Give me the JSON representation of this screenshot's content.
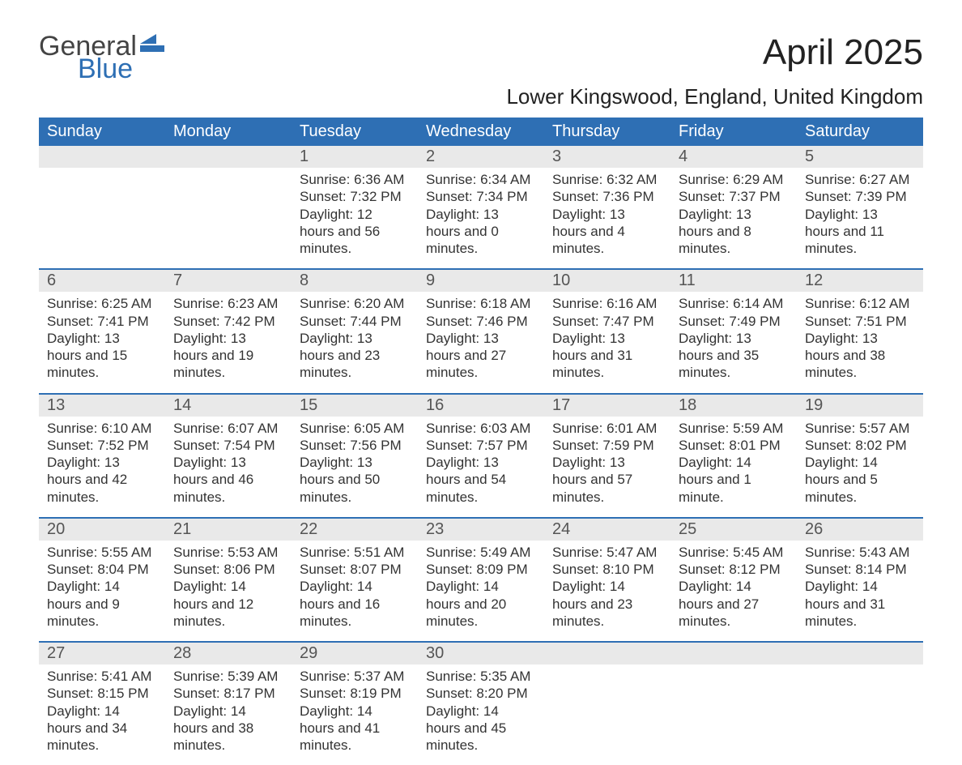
{
  "logo": {
    "word1": "General",
    "word2": "Blue",
    "flag_color": "#2e6fb4",
    "text_gray": "#444444"
  },
  "title": "April 2025",
  "location": "Lower Kingswood, England, United Kingdom",
  "colors": {
    "header_bg": "#2e6fb4",
    "header_text": "#ffffff",
    "daynum_bg": "#e9e9e9",
    "daynum_text": "#555555",
    "body_text": "#333333",
    "week_divider": "#2e6fb4",
    "page_bg": "#ffffff"
  },
  "day_headers": [
    "Sunday",
    "Monday",
    "Tuesday",
    "Wednesday",
    "Thursday",
    "Friday",
    "Saturday"
  ],
  "weeks": [
    {
      "nums": [
        "",
        "",
        "1",
        "2",
        "3",
        "4",
        "5"
      ],
      "cells": [
        {},
        {},
        {
          "sunrise": "Sunrise: 6:36 AM",
          "sunset": "Sunset: 7:32 PM",
          "daylight": "Daylight: 12 hours and 56 minutes."
        },
        {
          "sunrise": "Sunrise: 6:34 AM",
          "sunset": "Sunset: 7:34 PM",
          "daylight": "Daylight: 13 hours and 0 minutes."
        },
        {
          "sunrise": "Sunrise: 6:32 AM",
          "sunset": "Sunset: 7:36 PM",
          "daylight": "Daylight: 13 hours and 4 minutes."
        },
        {
          "sunrise": "Sunrise: 6:29 AM",
          "sunset": "Sunset: 7:37 PM",
          "daylight": "Daylight: 13 hours and 8 minutes."
        },
        {
          "sunrise": "Sunrise: 6:27 AM",
          "sunset": "Sunset: 7:39 PM",
          "daylight": "Daylight: 13 hours and 11 minutes."
        }
      ]
    },
    {
      "nums": [
        "6",
        "7",
        "8",
        "9",
        "10",
        "11",
        "12"
      ],
      "cells": [
        {
          "sunrise": "Sunrise: 6:25 AM",
          "sunset": "Sunset: 7:41 PM",
          "daylight": "Daylight: 13 hours and 15 minutes."
        },
        {
          "sunrise": "Sunrise: 6:23 AM",
          "sunset": "Sunset: 7:42 PM",
          "daylight": "Daylight: 13 hours and 19 minutes."
        },
        {
          "sunrise": "Sunrise: 6:20 AM",
          "sunset": "Sunset: 7:44 PM",
          "daylight": "Daylight: 13 hours and 23 minutes."
        },
        {
          "sunrise": "Sunrise: 6:18 AM",
          "sunset": "Sunset: 7:46 PM",
          "daylight": "Daylight: 13 hours and 27 minutes."
        },
        {
          "sunrise": "Sunrise: 6:16 AM",
          "sunset": "Sunset: 7:47 PM",
          "daylight": "Daylight: 13 hours and 31 minutes."
        },
        {
          "sunrise": "Sunrise: 6:14 AM",
          "sunset": "Sunset: 7:49 PM",
          "daylight": "Daylight: 13 hours and 35 minutes."
        },
        {
          "sunrise": "Sunrise: 6:12 AM",
          "sunset": "Sunset: 7:51 PM",
          "daylight": "Daylight: 13 hours and 38 minutes."
        }
      ]
    },
    {
      "nums": [
        "13",
        "14",
        "15",
        "16",
        "17",
        "18",
        "19"
      ],
      "cells": [
        {
          "sunrise": "Sunrise: 6:10 AM",
          "sunset": "Sunset: 7:52 PM",
          "daylight": "Daylight: 13 hours and 42 minutes."
        },
        {
          "sunrise": "Sunrise: 6:07 AM",
          "sunset": "Sunset: 7:54 PM",
          "daylight": "Daylight: 13 hours and 46 minutes."
        },
        {
          "sunrise": "Sunrise: 6:05 AM",
          "sunset": "Sunset: 7:56 PM",
          "daylight": "Daylight: 13 hours and 50 minutes."
        },
        {
          "sunrise": "Sunrise: 6:03 AM",
          "sunset": "Sunset: 7:57 PM",
          "daylight": "Daylight: 13 hours and 54 minutes."
        },
        {
          "sunrise": "Sunrise: 6:01 AM",
          "sunset": "Sunset: 7:59 PM",
          "daylight": "Daylight: 13 hours and 57 minutes."
        },
        {
          "sunrise": "Sunrise: 5:59 AM",
          "sunset": "Sunset: 8:01 PM",
          "daylight": "Daylight: 14 hours and 1 minute."
        },
        {
          "sunrise": "Sunrise: 5:57 AM",
          "sunset": "Sunset: 8:02 PM",
          "daylight": "Daylight: 14 hours and 5 minutes."
        }
      ]
    },
    {
      "nums": [
        "20",
        "21",
        "22",
        "23",
        "24",
        "25",
        "26"
      ],
      "cells": [
        {
          "sunrise": "Sunrise: 5:55 AM",
          "sunset": "Sunset: 8:04 PM",
          "daylight": "Daylight: 14 hours and 9 minutes."
        },
        {
          "sunrise": "Sunrise: 5:53 AM",
          "sunset": "Sunset: 8:06 PM",
          "daylight": "Daylight: 14 hours and 12 minutes."
        },
        {
          "sunrise": "Sunrise: 5:51 AM",
          "sunset": "Sunset: 8:07 PM",
          "daylight": "Daylight: 14 hours and 16 minutes."
        },
        {
          "sunrise": "Sunrise: 5:49 AM",
          "sunset": "Sunset: 8:09 PM",
          "daylight": "Daylight: 14 hours and 20 minutes."
        },
        {
          "sunrise": "Sunrise: 5:47 AM",
          "sunset": "Sunset: 8:10 PM",
          "daylight": "Daylight: 14 hours and 23 minutes."
        },
        {
          "sunrise": "Sunrise: 5:45 AM",
          "sunset": "Sunset: 8:12 PM",
          "daylight": "Daylight: 14 hours and 27 minutes."
        },
        {
          "sunrise": "Sunrise: 5:43 AM",
          "sunset": "Sunset: 8:14 PM",
          "daylight": "Daylight: 14 hours and 31 minutes."
        }
      ]
    },
    {
      "nums": [
        "27",
        "28",
        "29",
        "30",
        "",
        "",
        ""
      ],
      "cells": [
        {
          "sunrise": "Sunrise: 5:41 AM",
          "sunset": "Sunset: 8:15 PM",
          "daylight": "Daylight: 14 hours and 34 minutes."
        },
        {
          "sunrise": "Sunrise: 5:39 AM",
          "sunset": "Sunset: 8:17 PM",
          "daylight": "Daylight: 14 hours and 38 minutes."
        },
        {
          "sunrise": "Sunrise: 5:37 AM",
          "sunset": "Sunset: 8:19 PM",
          "daylight": "Daylight: 14 hours and 41 minutes."
        },
        {
          "sunrise": "Sunrise: 5:35 AM",
          "sunset": "Sunset: 8:20 PM",
          "daylight": "Daylight: 14 hours and 45 minutes."
        },
        {},
        {},
        {}
      ]
    }
  ]
}
